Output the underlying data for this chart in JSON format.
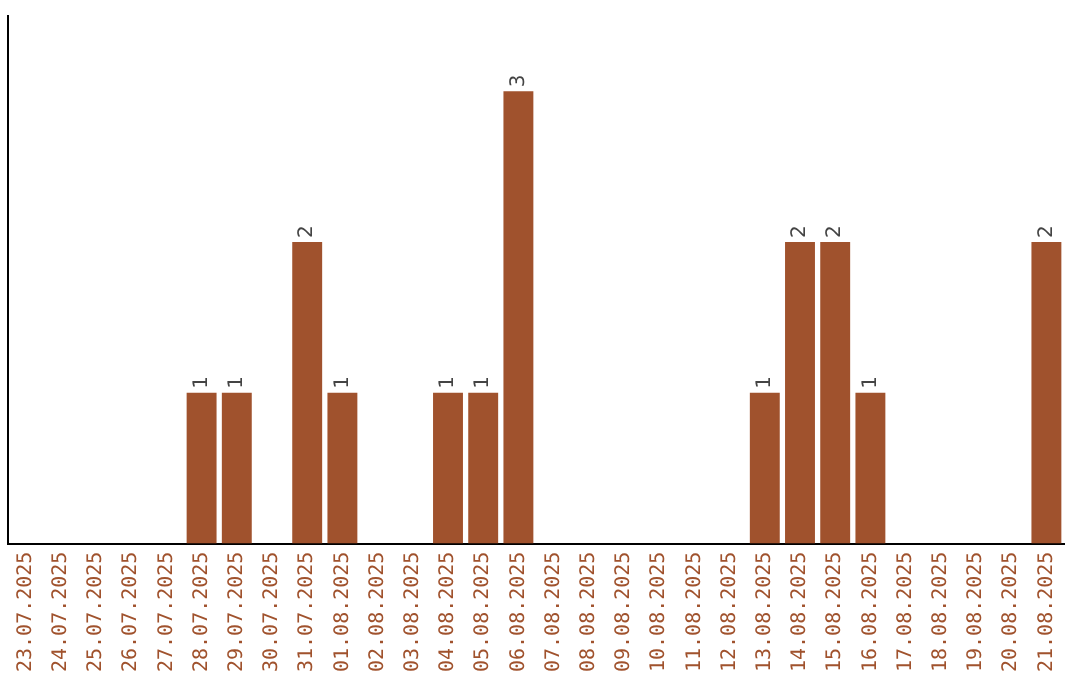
{
  "chart_data": {
    "type": "bar",
    "categories": [
      "23.07.2025",
      "24.07.2025",
      "25.07.2025",
      "26.07.2025",
      "27.07.2025",
      "28.07.2025",
      "29.07.2025",
      "30.07.2025",
      "31.07.2025",
      "01.08.2025",
      "02.08.2025",
      "03.08.2025",
      "04.08.2025",
      "05.08.2025",
      "06.08.2025",
      "07.08.2025",
      "08.08.2025",
      "09.08.2025",
      "10.08.2025",
      "11.08.2025",
      "12.08.2025",
      "13.08.2025",
      "14.08.2025",
      "15.08.2025",
      "16.08.2025",
      "17.08.2025",
      "18.08.2025",
      "19.08.2025",
      "20.08.2025",
      "21.08.2025"
    ],
    "values": [
      0,
      0,
      0,
      0,
      0,
      1,
      1,
      0,
      2,
      1,
      0,
      0,
      1,
      1,
      3,
      0,
      0,
      0,
      0,
      0,
      0,
      1,
      2,
      2,
      1,
      0,
      0,
      0,
      0,
      2
    ],
    "value_labels": [
      null,
      null,
      null,
      null,
      null,
      "1",
      "1",
      null,
      "2",
      "1",
      null,
      null,
      "1",
      "1",
      "3",
      null,
      null,
      null,
      null,
      null,
      null,
      "1",
      "2",
      "2",
      "1",
      null,
      null,
      null,
      null,
      "2"
    ],
    "color": "#a0522d",
    "grid": false,
    "legend": false,
    "tick_labels": "x"
  }
}
